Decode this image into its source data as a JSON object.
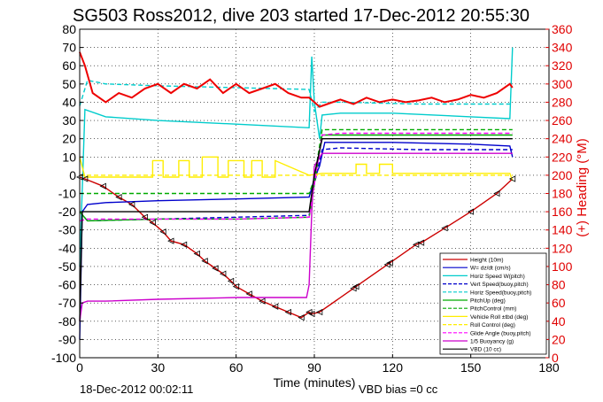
{
  "chart_data": {
    "type": "line",
    "title": "SG503 Ross2012, dive 203 started 17-Dec-2012 20:55:30",
    "xlabel": "Time (minutes)",
    "ylabel_right": "(+) Heading (°M)",
    "footer_left": "18-Dec-2012 00:02:11",
    "footer_right": "VBD bias =0 cc",
    "xlim": [
      0,
      180
    ],
    "ylim": [
      -100,
      80
    ],
    "ylim_right": [
      0,
      360
    ],
    "x_ticks": [
      "0",
      "30",
      "60",
      "90",
      "120",
      "150",
      "180"
    ],
    "y_ticks": [
      "80",
      "70",
      "60",
      "50",
      "40",
      "30",
      "20",
      "10",
      "0",
      "-10",
      "-20",
      "-30",
      "-40",
      "-50",
      "-60",
      "-70",
      "-80",
      "-90",
      "-100"
    ],
    "y_ticks_right": [
      "360",
      "340",
      "320",
      "300",
      "280",
      "260",
      "240",
      "220",
      "200",
      "180",
      "160",
      "140",
      "120",
      "100",
      "80",
      "60",
      "40",
      "20",
      "0"
    ],
    "grid": true,
    "legend_position": "bottom-right",
    "colors": {
      "axis_right": "#e00000",
      "grid": "#000000"
    },
    "series": [
      {
        "name": "Height (10m)",
        "color": "#cc0000",
        "style": "solid",
        "x": [
          0,
          2,
          9,
          15,
          20,
          25,
          28,
          32,
          35,
          40,
          45,
          48,
          52,
          55,
          58,
          60,
          65,
          70,
          75,
          80,
          85,
          88,
          89,
          92,
          105,
          106,
          118,
          119,
          129,
          131,
          140,
          150,
          160,
          166
        ],
        "y": [
          -1,
          -2,
          -6,
          -12,
          -16,
          -23,
          -26,
          -31,
          -36,
          -38,
          -43,
          -47,
          -51,
          -54,
          -58,
          -61,
          -65,
          -69,
          -72,
          -75,
          -78,
          -75,
          -76,
          -75,
          -62,
          -61,
          -49,
          -48,
          -38,
          -37,
          -29,
          -20,
          -10,
          -2
        ]
      },
      {
        "name": "W= dz/dt (cm/s)",
        "color": "#0000cc",
        "style": "solid",
        "x": [
          0,
          1,
          3,
          10,
          30,
          60,
          88,
          90,
          92,
          94,
          100,
          120,
          150,
          165,
          166
        ],
        "y": [
          -90,
          -20,
          -16,
          -15,
          -14,
          -13,
          -12,
          -2,
          5,
          18,
          18,
          18,
          17,
          16,
          10
        ]
      },
      {
        "name": "Horiz Speed W(pitch)",
        "color": "#00cccc",
        "style": "solid",
        "x": [
          0,
          2,
          10,
          30,
          60,
          88,
          89,
          90,
          92,
          93,
          100,
          120,
          150,
          165,
          166
        ],
        "y": [
          -50,
          36,
          32,
          30,
          28,
          26,
          65,
          40,
          20,
          33,
          34,
          34,
          32,
          31,
          70
        ]
      },
      {
        "name": "Vert Speed(buoy,pitch)",
        "color": "#0000cc",
        "style": "dashed",
        "x": [
          0,
          3,
          30,
          60,
          88,
          90,
          93,
          100,
          130,
          166
        ],
        "y": [
          -20,
          -25,
          -24,
          -23,
          -22,
          -5,
          14,
          15,
          14,
          14
        ]
      },
      {
        "name": "Horiz Speed(buoy,pitch)",
        "color": "#00cccc",
        "style": "dashed",
        "x": [
          0,
          3,
          10,
          30,
          60,
          88,
          90,
          93,
          100,
          130,
          166
        ],
        "y": [
          38,
          52,
          50,
          49,
          48,
          47,
          35,
          40,
          40,
          39,
          39
        ]
      },
      {
        "name": "PitchUp (deg)",
        "color": "#00aa00",
        "style": "solid",
        "x": [
          0,
          3,
          30,
          60,
          88,
          90,
          93,
          100,
          166
        ],
        "y": [
          -20,
          -25,
          -24,
          -24,
          -23,
          -5,
          22,
          22,
          22
        ]
      },
      {
        "name": "PitchControl (mm)",
        "color": "#00aa00",
        "style": "dashed",
        "x": [
          0,
          3,
          30,
          60,
          88,
          90,
          93,
          166
        ],
        "y": [
          -10,
          -10,
          -10,
          -10,
          -10,
          -2,
          25,
          25
        ]
      },
      {
        "name": "Vehicle Roll ±tbd (deg)",
        "color": "#ffee00",
        "style": "solid",
        "x": [
          0,
          2,
          28,
          28,
          32,
          32,
          38,
          38,
          42,
          42,
          47,
          47,
          53,
          53,
          57,
          57,
          63,
          63,
          66,
          66,
          70,
          70,
          75,
          75,
          88,
          93,
          106,
          106,
          110,
          110,
          115,
          115,
          120,
          120,
          150,
          165,
          166
        ],
        "y": [
          10,
          -1,
          -1,
          8,
          8,
          -1,
          -1,
          8,
          8,
          -1,
          -1,
          10,
          10,
          -1,
          -1,
          8,
          8,
          -1,
          -1,
          8,
          8,
          -1,
          -1,
          8,
          0,
          1,
          1,
          6,
          6,
          1,
          1,
          6,
          6,
          1,
          1,
          1,
          -3
        ]
      },
      {
        "name": "Roll Control (deg)",
        "color": "#ffee00",
        "style": "dashed",
        "x": [
          0,
          166
        ],
        "y": [
          0,
          0
        ]
      },
      {
        "name": "Glide Angle (buoy,pitch)",
        "color": "#ff00ff",
        "style": "dashed",
        "x": [
          0,
          3,
          30,
          60,
          88,
          90,
          93,
          100,
          166
        ],
        "y": [
          -25,
          -24,
          -24,
          -24,
          -23,
          -5,
          22,
          23,
          23
        ]
      },
      {
        "name": "1/5 Buoyancy (g)",
        "color": "#cc00cc",
        "style": "solid",
        "x": [
          0,
          1,
          3,
          10,
          30,
          60,
          87,
          88,
          89,
          90,
          93,
          100,
          166
        ],
        "y": [
          -80,
          -70,
          -69,
          -69,
          -68,
          -67,
          -67,
          -60,
          -20,
          5,
          12,
          12,
          12
        ]
      },
      {
        "name": "VBD (10 cc)",
        "color": "#000000",
        "style": "solid",
        "x": [
          0,
          1,
          10,
          30,
          60,
          88,
          90,
          93,
          100,
          166
        ],
        "y": [
          -80,
          -20,
          -20,
          -20,
          -20,
          -20,
          0,
          20,
          20,
          20
        ]
      },
      {
        "name": "Heading",
        "color": "#ee0000",
        "style": "solid",
        "axis": "right",
        "x": [
          0,
          2,
          5,
          10,
          15,
          20,
          25,
          30,
          35,
          40,
          45,
          50,
          55,
          60,
          65,
          70,
          75,
          80,
          85,
          88,
          90,
          92,
          95,
          100,
          105,
          110,
          115,
          120,
          125,
          130,
          135,
          140,
          145,
          150,
          155,
          160,
          165,
          166
        ],
        "y": [
          335,
          320,
          290,
          280,
          290,
          285,
          295,
          300,
          290,
          300,
          295,
          305,
          290,
          300,
          290,
          295,
          300,
          290,
          285,
          285,
          280,
          275,
          278,
          283,
          278,
          285,
          280,
          283,
          280,
          282,
          285,
          280,
          283,
          288,
          285,
          290,
          300,
          296
        ]
      }
    ]
  },
  "legend": {
    "items": [
      "Height (10m)",
      "W= dz/dt (cm/s)",
      "Horiz Speed W(pitch)",
      "Vert Speed(buoy,pitch)",
      "Horiz Speed(buoy,pitch)",
      "PitchUp (deg)",
      "PitchControl (mm)",
      "Vehicle Roll ±tbd (deg)",
      "Roll Control (deg)",
      "Glide Angle (buoy,pitch)",
      "1/5 Buoyancy (g)",
      "VBD (10 cc)"
    ]
  }
}
